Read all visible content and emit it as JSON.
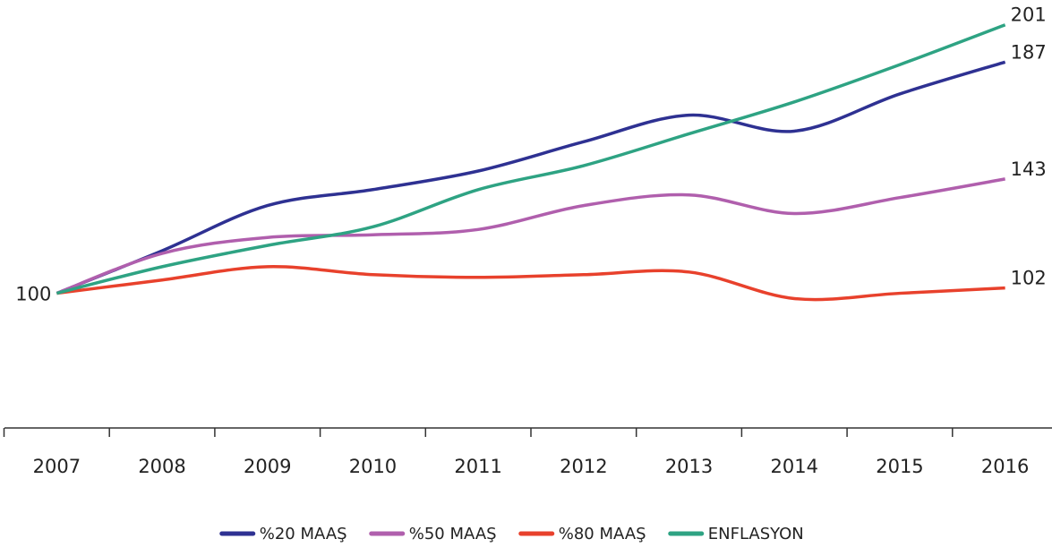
{
  "chart_data": {
    "type": "line",
    "categories": [
      "2007",
      "2008",
      "2009",
      "2010",
      "2011",
      "2012",
      "2013",
      "2014",
      "2015",
      "2016"
    ],
    "series": [
      {
        "name": "%20 MAAŞ",
        "color": "#2e3192",
        "values": [
          100,
          116,
          133,
          139,
          146,
          157,
          167,
          161,
          175,
          187
        ]
      },
      {
        "name": "%50 MAAŞ",
        "color": "#b05fad",
        "values": [
          100,
          115,
          121,
          122,
          124,
          133,
          137,
          130,
          136,
          143
        ]
      },
      {
        "name": "%80 MAAŞ",
        "color": "#e8412c",
        "values": [
          100,
          105,
          110,
          107,
          106,
          107,
          108,
          98,
          100,
          102
        ]
      },
      {
        "name": "ENFLASYON",
        "color": "#2ea383",
        "values": [
          100,
          110,
          118,
          125,
          139,
          148,
          160,
          172,
          186,
          201
        ]
      }
    ],
    "ylim": [
      50,
      210
    ],
    "legend": "bottom"
  }
}
